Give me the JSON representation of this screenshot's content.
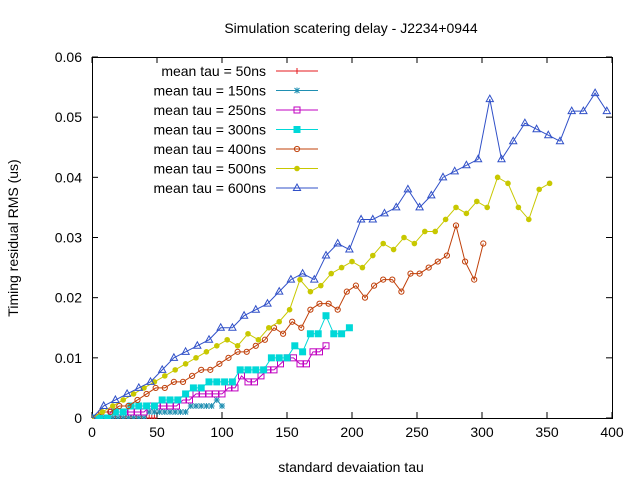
{
  "chart_data": {
    "type": "line",
    "title": "Simulation scatering delay - J2234+0944",
    "xlabel": "standard devaiation tau",
    "ylabel": "Timing residual RMS (us)",
    "xlim": [
      0,
      400
    ],
    "ylim": [
      0,
      0.06
    ],
    "x_ticks": [
      "0",
      "50",
      "100",
      "150",
      "200",
      "250",
      "300",
      "350",
      "400"
    ],
    "y_ticks": [
      "0",
      "0.01",
      "0.02",
      "0.03",
      "0.04",
      "0.05",
      "0.06"
    ],
    "grid": false,
    "legend_position": "top-left",
    "series": [
      {
        "name": "mean tau = 50ns",
        "color": "#e41a1c",
        "marker": "plus",
        "x": [
          0,
          2,
          4,
          6,
          8,
          10,
          12,
          14,
          16,
          18,
          20,
          22,
          24,
          26,
          28,
          30,
          32,
          34,
          36,
          38,
          40,
          42,
          44,
          46,
          48
        ],
        "y": [
          0,
          0,
          0,
          0,
          0,
          0,
          0,
          0,
          0,
          0,
          0,
          0,
          0,
          0,
          0,
          0,
          0,
          0,
          0,
          0,
          0,
          0,
          0,
          0,
          0
        ]
      },
      {
        "name": "mean tau = 150ns",
        "color": "#1f8fb2",
        "marker": "star",
        "x": [
          0,
          4,
          8,
          12,
          16,
          20,
          24,
          28,
          32,
          36,
          40,
          44,
          48,
          52,
          56,
          60,
          64,
          68,
          72,
          76,
          80,
          84,
          88,
          92,
          96,
          100
        ],
        "y": [
          0,
          0,
          0,
          0,
          0,
          0,
          0,
          0,
          0,
          0,
          0,
          0.001,
          0.001,
          0.001,
          0.001,
          0.001,
          0.001,
          0.001,
          0.001,
          0.002,
          0.002,
          0.002,
          0.002,
          0.002,
          0.003,
          0.002
        ]
      },
      {
        "name": "mean tau = 250ns",
        "color": "#c000c0",
        "marker": "square-open",
        "x": [
          0,
          5,
          10,
          15,
          20,
          25,
          30,
          35,
          40,
          45,
          50,
          55,
          60,
          65,
          70,
          75,
          80,
          85,
          90,
          95,
          100,
          105,
          110,
          115,
          120,
          125,
          130,
          135,
          140,
          145,
          150,
          155,
          160,
          165,
          170,
          175,
          180
        ],
        "y": [
          0,
          0,
          0,
          0.001,
          0.001,
          0.001,
          0.001,
          0.001,
          0.001,
          0.002,
          0.002,
          0.002,
          0.002,
          0.002,
          0.003,
          0.003,
          0.004,
          0.004,
          0.004,
          0.004,
          0.004,
          0.005,
          0.005,
          0.007,
          0.006,
          0.006,
          0.007,
          0.008,
          0.008,
          0.009,
          0.01,
          0.01,
          0.009,
          0.009,
          0.011,
          0.011,
          0.012
        ]
      },
      {
        "name": "mean tau = 300ns",
        "color": "#00d8d8",
        "marker": "square-filled",
        "x": [
          0,
          6,
          12,
          18,
          24,
          30,
          36,
          42,
          48,
          54,
          60,
          66,
          72,
          78,
          84,
          90,
          96,
          102,
          108,
          114,
          120,
          126,
          132,
          138,
          144,
          150,
          156,
          162,
          168,
          174,
          180,
          186,
          192,
          198
        ],
        "y": [
          0,
          0,
          0,
          0.001,
          0.001,
          0.002,
          0.002,
          0.002,
          0.002,
          0.003,
          0.003,
          0.003,
          0.004,
          0.005,
          0.005,
          0.006,
          0.006,
          0.006,
          0.006,
          0.008,
          0.008,
          0.008,
          0.008,
          0.01,
          0.01,
          0.01,
          0.012,
          0.011,
          0.014,
          0.014,
          0.017,
          0.014,
          0.014,
          0.015
        ]
      },
      {
        "name": "mean tau = 400ns",
        "color": "#c0400a",
        "marker": "circle-open",
        "x": [
          0,
          7,
          14,
          21,
          28,
          35,
          42,
          49,
          56,
          63,
          70,
          77,
          84,
          91,
          98,
          105,
          112,
          119,
          126,
          133,
          140,
          147,
          154,
          161,
          168,
          175,
          182,
          189,
          196,
          203,
          210,
          217,
          224,
          231,
          238,
          245,
          252,
          259,
          266,
          273,
          280,
          287,
          294,
          301
        ],
        "y": [
          0,
          0.001,
          0.001,
          0.002,
          0.002,
          0.003,
          0.004,
          0.005,
          0.005,
          0.006,
          0.006,
          0.007,
          0.008,
          0.008,
          0.009,
          0.01,
          0.011,
          0.011,
          0.012,
          0.013,
          0.015,
          0.014,
          0.016,
          0.015,
          0.018,
          0.019,
          0.019,
          0.018,
          0.021,
          0.022,
          0.02,
          0.022,
          0.023,
          0.023,
          0.021,
          0.024,
          0.024,
          0.025,
          0.026,
          0.027,
          0.032,
          0.026,
          0.023,
          0.029
        ]
      },
      {
        "name": "mean tau = 500ns",
        "color": "#c8c800",
        "marker": "circle-filled",
        "x": [
          0,
          8,
          16,
          24,
          32,
          40,
          48,
          56,
          64,
          72,
          80,
          88,
          96,
          104,
          112,
          120,
          128,
          136,
          144,
          152,
          160,
          168,
          176,
          184,
          192,
          200,
          208,
          216,
          224,
          232,
          240,
          248,
          256,
          264,
          272,
          280,
          288,
          296,
          304,
          312,
          320,
          328,
          336,
          344,
          352
        ],
        "y": [
          0,
          0.001,
          0.002,
          0.003,
          0.004,
          0.005,
          0.006,
          0.007,
          0.008,
          0.009,
          0.01,
          0.011,
          0.012,
          0.013,
          0.012,
          0.014,
          0.013,
          0.015,
          0.016,
          0.018,
          0.023,
          0.021,
          0.022,
          0.024,
          0.025,
          0.026,
          0.025,
          0.027,
          0.029,
          0.028,
          0.03,
          0.029,
          0.031,
          0.031,
          0.033,
          0.035,
          0.034,
          0.036,
          0.035,
          0.04,
          0.039,
          0.035,
          0.033,
          0.038,
          0.039
        ]
      },
      {
        "name": "mean tau = 600ns",
        "color": "#3050c8",
        "marker": "triangle-open",
        "x": [
          0,
          9,
          18,
          27,
          36,
          45,
          54,
          63,
          72,
          81,
          90,
          99,
          108,
          117,
          126,
          135,
          144,
          153,
          162,
          171,
          180,
          189,
          198,
          207,
          216,
          225,
          234,
          243,
          252,
          261,
          270,
          279,
          288,
          297,
          306,
          315,
          324,
          333,
          342,
          351,
          360,
          369,
          378,
          387,
          396
        ],
        "y": [
          0,
          0.002,
          0.003,
          0.004,
          0.005,
          0.006,
          0.008,
          0.01,
          0.011,
          0.012,
          0.013,
          0.015,
          0.015,
          0.017,
          0.018,
          0.019,
          0.021,
          0.023,
          0.024,
          0.023,
          0.027,
          0.029,
          0.028,
          0.033,
          0.033,
          0.034,
          0.035,
          0.038,
          0.035,
          0.037,
          0.04,
          0.041,
          0.042,
          0.043,
          0.053,
          0.043,
          0.046,
          0.049,
          0.048,
          0.047,
          0.046,
          0.051,
          0.051,
          0.054,
          0.051
        ]
      }
    ]
  }
}
